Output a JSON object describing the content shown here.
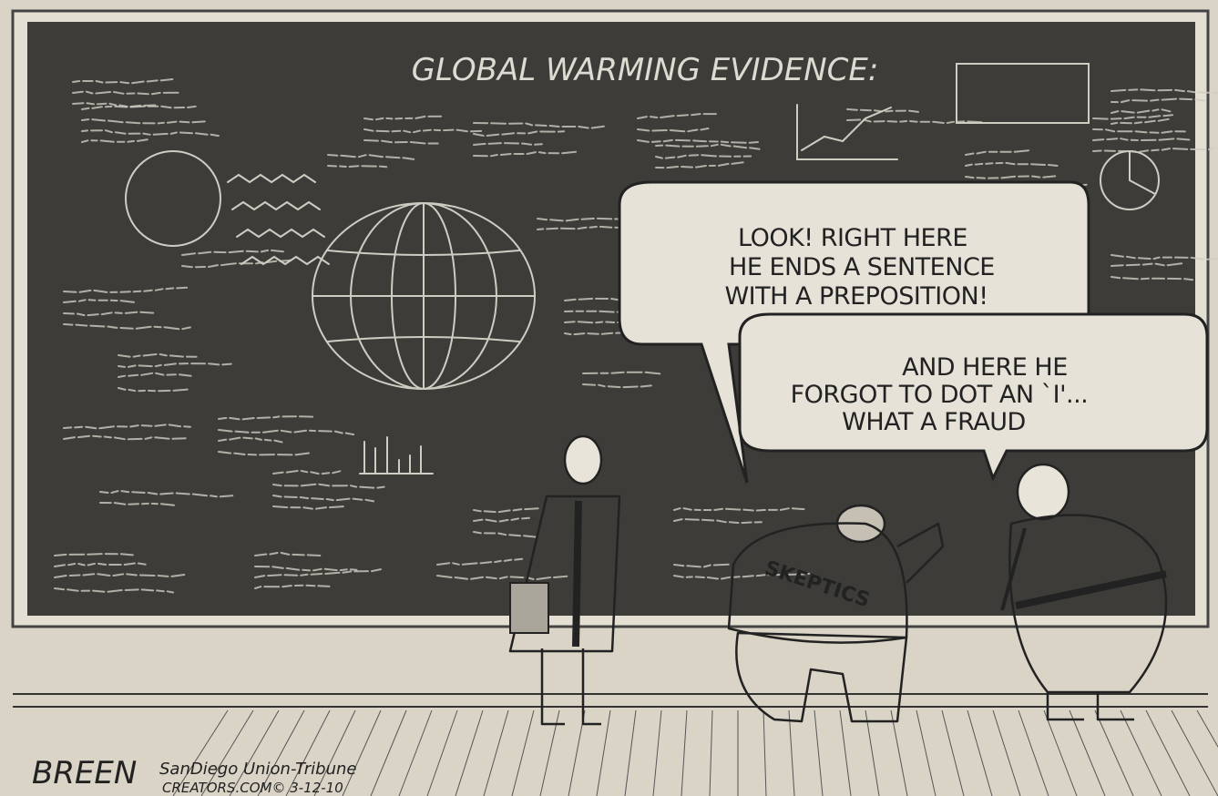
{
  "board": {
    "title": "GLOBAL WARMING EVIDENCE:"
  },
  "bubbles": [
    {
      "lines": [
        "LOOK! RIGHT HERE",
        "HE ENDS A SENTENCE",
        "WITH A PREPOSITION!"
      ]
    },
    {
      "lines": [
        "AND HERE HE",
        "FORGOT TO DOT AN `I'...",
        "WHAT A FRAUD"
      ]
    }
  ],
  "label": "SKEPTICS",
  "credits": {
    "signature": "BREEN",
    "paper": "SanDiego Union-Tribune",
    "syndicate": "CREATORS.COM© 3-12-10"
  }
}
